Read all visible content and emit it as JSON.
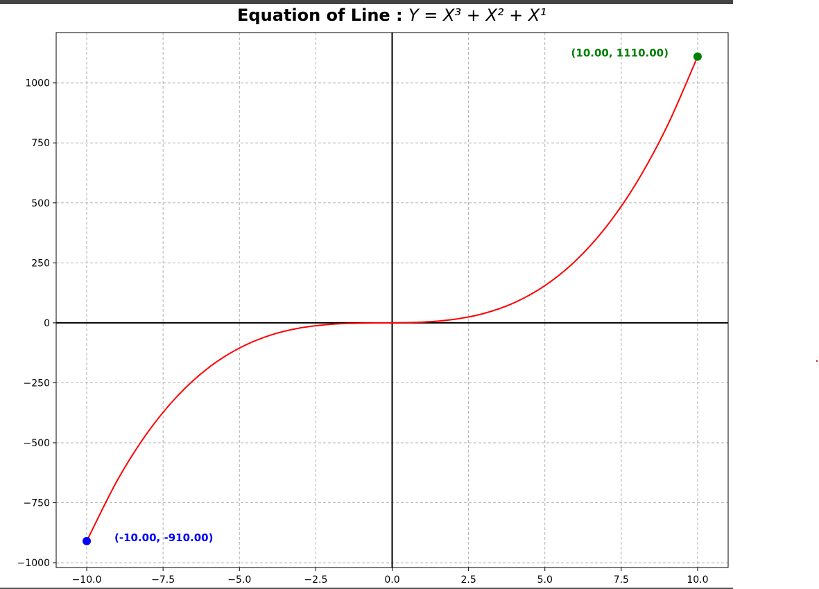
{
  "title": {
    "prefix": "Equation of Line : ",
    "equation": "Y = X³ + X² + X¹"
  },
  "chart_data": {
    "type": "line",
    "title": "Equation of Line : Y = X³ + X² + X¹",
    "xlabel": "",
    "ylabel": "",
    "xlim": [
      -11,
      11
    ],
    "ylim": [
      -1020,
      1210
    ],
    "grid": true,
    "grid_style": "dashed",
    "x_ticks": [
      -10.0,
      -7.5,
      -5.0,
      -2.5,
      0.0,
      2.5,
      5.0,
      7.5,
      10.0
    ],
    "x_tick_labels": [
      "−10.0",
      "−7.5",
      "−5.0",
      "−2.5",
      "0.0",
      "2.5",
      "5.0",
      "7.5",
      "10.0"
    ],
    "y_ticks": [
      -1000,
      -750,
      -500,
      -250,
      0,
      250,
      500,
      750,
      1000
    ],
    "y_tick_labels": [
      "−1000",
      "−750",
      "−500",
      "−250",
      "0",
      "250",
      "500",
      "750",
      "1000"
    ],
    "axis_lines": {
      "x0": 0,
      "y0": 0,
      "color": "#000000"
    },
    "series": [
      {
        "color": "#ff0000",
        "x": [
          -10,
          -9,
          -8,
          -7,
          -6,
          -5,
          -4,
          -3,
          -2,
          -1,
          0,
          1,
          2,
          3,
          4,
          5,
          6,
          7,
          8,
          9,
          10
        ],
        "y": [
          -910,
          -657,
          -456,
          -301,
          -186,
          -105,
          -52,
          -21,
          -6,
          -1,
          0,
          3,
          14,
          39,
          84,
          155,
          258,
          399,
          584,
          819,
          1110
        ]
      }
    ],
    "points": [
      {
        "x": -10,
        "y": -910,
        "color": "#0000ff",
        "label": "(-10.00, -910.00)",
        "label_side": "right"
      },
      {
        "x": 10,
        "y": 1110,
        "color": "#008000",
        "label": "(10.00, 1110.00)",
        "label_side": "left"
      }
    ]
  }
}
